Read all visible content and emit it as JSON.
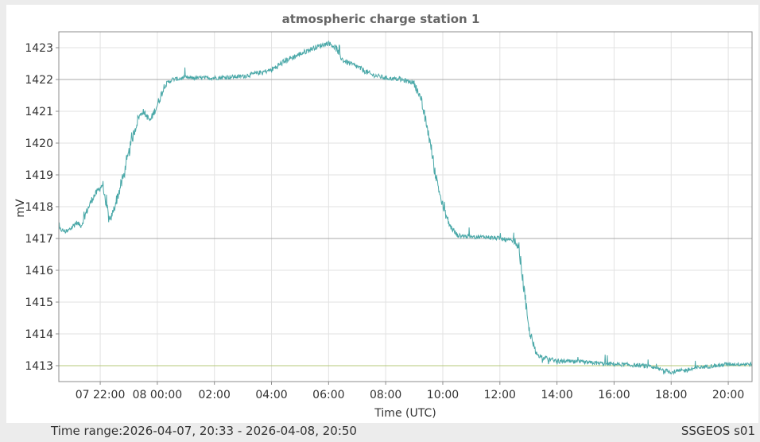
{
  "chart_data": {
    "type": "line",
    "title": "atmospheric charge station 1",
    "xlabel": "Time (UTC)",
    "ylabel": "mV",
    "x_range": [
      "2026-04-07 20:33",
      "2026-04-08 20:50"
    ],
    "ylim": [
      1412.5,
      1423.5
    ],
    "y_ticks": [
      1413,
      1414,
      1415,
      1416,
      1417,
      1418,
      1419,
      1420,
      1421,
      1422,
      1423
    ],
    "x_ticks": [
      {
        "t": "2026-04-07 22:00",
        "label": "07 22:00"
      },
      {
        "t": "2026-04-08 00:00",
        "label": "08 00:00"
      },
      {
        "t": "2026-04-08 02:00",
        "label": "02:00"
      },
      {
        "t": "2026-04-08 04:00",
        "label": "04:00"
      },
      {
        "t": "2026-04-08 06:00",
        "label": "06:00"
      },
      {
        "t": "2026-04-08 08:00",
        "label": "08:00"
      },
      {
        "t": "2026-04-08 10:00",
        "label": "10:00"
      },
      {
        "t": "2026-04-08 12:00",
        "label": "12:00"
      },
      {
        "t": "2026-04-08 14:00",
        "label": "14:00"
      },
      {
        "t": "2026-04-08 16:00",
        "label": "16:00"
      },
      {
        "t": "2026-04-08 18:00",
        "label": "18:00"
      },
      {
        "t": "2026-04-08 20:00",
        "label": "20:00"
      }
    ],
    "reference_lines": [
      {
        "y": 1422,
        "color": "#a8a8a8"
      },
      {
        "y": 1417,
        "color": "#a8a8a8"
      },
      {
        "y": 1413,
        "color": "#b5c878"
      }
    ],
    "grid": true,
    "series": [
      {
        "color": "#4aa8a8",
        "x": [
          "2026-04-07 20:33",
          "2026-04-07 20:50",
          "2026-04-07 21:10",
          "2026-04-07 21:20",
          "2026-04-07 21:30",
          "2026-04-07 21:45",
          "2026-04-07 22:05",
          "2026-04-07 22:20",
          "2026-04-07 22:30",
          "2026-04-07 22:50",
          "2026-04-07 23:05",
          "2026-04-07 23:20",
          "2026-04-07 23:30",
          "2026-04-07 23:45",
          "2026-04-08 00:00",
          "2026-04-08 00:15",
          "2026-04-08 00:30",
          "2026-04-08 01:00",
          "2026-04-08 02:00",
          "2026-04-08 03:00",
          "2026-04-08 03:30",
          "2026-04-08 04:00",
          "2026-04-08 04:30",
          "2026-04-08 05:00",
          "2026-04-08 05:30",
          "2026-04-08 06:00",
          "2026-04-08 06:15",
          "2026-04-08 06:30",
          "2026-04-08 07:00",
          "2026-04-08 07:30",
          "2026-04-08 08:00",
          "2026-04-08 08:30",
          "2026-04-08 09:00",
          "2026-04-08 09:15",
          "2026-04-08 09:30",
          "2026-04-08 09:45",
          "2026-04-08 10:00",
          "2026-04-08 10:15",
          "2026-04-08 10:30",
          "2026-04-08 11:00",
          "2026-04-08 11:30",
          "2026-04-08 12:00",
          "2026-04-08 12:30",
          "2026-04-08 12:40",
          "2026-04-08 12:50",
          "2026-04-08 13:00",
          "2026-04-08 13:15",
          "2026-04-08 13:30",
          "2026-04-08 14:00",
          "2026-04-08 15:00",
          "2026-04-08 16:00",
          "2026-04-08 17:00",
          "2026-04-08 17:30",
          "2026-04-08 18:00",
          "2026-04-08 18:30",
          "2026-04-08 19:00",
          "2026-04-08 19:30",
          "2026-04-08 20:00",
          "2026-04-08 20:50"
        ],
        "y": [
          1417.3,
          1417.2,
          1417.5,
          1417.4,
          1417.8,
          1418.3,
          1418.7,
          1417.5,
          1418.0,
          1419.0,
          1420.0,
          1420.8,
          1421.0,
          1420.7,
          1421.2,
          1421.8,
          1422.0,
          1422.05,
          1422.05,
          1422.1,
          1422.2,
          1422.3,
          1422.6,
          1422.8,
          1423.0,
          1423.15,
          1423.0,
          1422.6,
          1422.4,
          1422.15,
          1422.05,
          1422.0,
          1421.9,
          1421.3,
          1420.3,
          1419.0,
          1418.0,
          1417.4,
          1417.1,
          1417.05,
          1417.05,
          1417.0,
          1416.9,
          1416.7,
          1415.5,
          1414.2,
          1413.4,
          1413.25,
          1413.15,
          1413.1,
          1413.05,
          1413.0,
          1412.9,
          1412.8,
          1412.85,
          1412.95,
          1413.0,
          1413.05,
          1413.05
        ]
      }
    ]
  },
  "footer": {
    "time_range": "Time range:2026-04-07, 20:33 - 2026-04-08, 20:50",
    "station": "SSGEOS s01"
  }
}
